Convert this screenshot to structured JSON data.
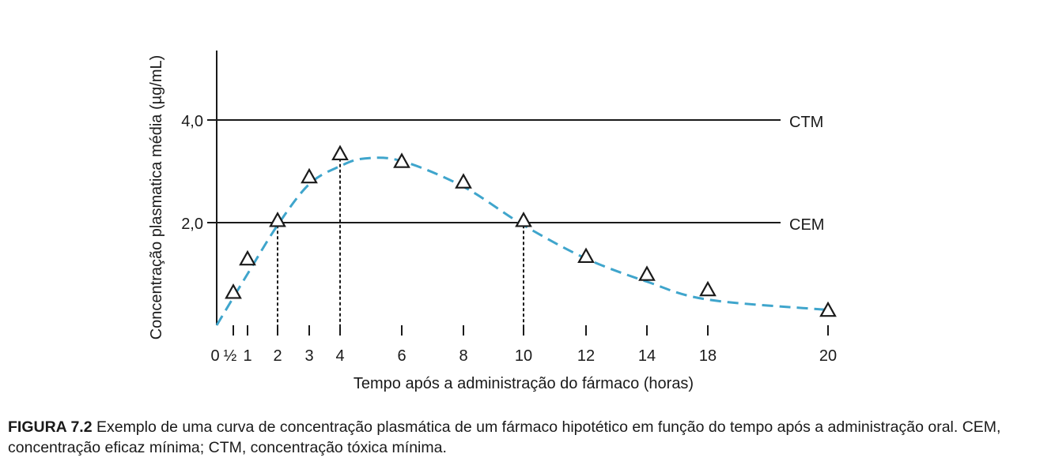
{
  "chart_data": {
    "type": "line",
    "ylabel": "Concentração plasmatica média (µg/mL)",
    "xlabel": "Tempo após a administração do fármaco (horas)",
    "y_ticks": [
      {
        "value": 2.0,
        "label": "2,0"
      },
      {
        "value": 4.0,
        "label": "4,0"
      }
    ],
    "ylim": [
      0,
      5.5
    ],
    "x_ticks": [
      {
        "value": 0,
        "label": "0"
      },
      {
        "value": 0.5,
        "label": "½"
      },
      {
        "value": 1,
        "label": "1"
      },
      {
        "value": 2,
        "label": "2"
      },
      {
        "value": 3,
        "label": "3"
      },
      {
        "value": 4,
        "label": "4"
      },
      {
        "value": 6,
        "label": "6"
      },
      {
        "value": 8,
        "label": "8"
      },
      {
        "value": 10,
        "label": "10"
      },
      {
        "value": 12,
        "label": "12"
      },
      {
        "value": 14,
        "label": "14"
      },
      {
        "value": 18,
        "label": "18"
      },
      {
        "value": 20,
        "label": "20"
      }
    ],
    "reference_lines": [
      {
        "name": "CTM",
        "value": 4.0
      },
      {
        "name": "CEM",
        "value": 2.0
      }
    ],
    "dropdown_lines_at_x": [
      2,
      4,
      10
    ],
    "series": [
      {
        "name": "Concentração plasmática",
        "marker": "triangle",
        "color": "#3fa5cc",
        "points": [
          {
            "x": 0.5,
            "y": 0.55
          },
          {
            "x": 1,
            "y": 1.2
          },
          {
            "x": 2,
            "y": 1.95
          },
          {
            "x": 3,
            "y": 2.8
          },
          {
            "x": 4,
            "y": 3.25
          },
          {
            "x": 6,
            "y": 3.1
          },
          {
            "x": 8,
            "y": 2.7
          },
          {
            "x": 10,
            "y": 1.95
          },
          {
            "x": 12,
            "y": 1.25
          },
          {
            "x": 14,
            "y": 0.9
          },
          {
            "x": 18,
            "y": 0.6
          },
          {
            "x": 20,
            "y": 0.2
          }
        ],
        "curve": [
          {
            "x": 0,
            "y": 0.0
          },
          {
            "x": 1,
            "y": 1.0
          },
          {
            "x": 2,
            "y": 1.95
          },
          {
            "x": 3,
            "y": 2.75
          },
          {
            "x": 4,
            "y": 3.1
          },
          {
            "x": 4.8,
            "y": 3.25
          },
          {
            "x": 6,
            "y": 3.2
          },
          {
            "x": 8,
            "y": 2.7
          },
          {
            "x": 10,
            "y": 1.95
          },
          {
            "x": 12,
            "y": 1.3
          },
          {
            "x": 14,
            "y": 0.85
          },
          {
            "x": 18,
            "y": 0.5
          },
          {
            "x": 20,
            "y": 0.3
          }
        ]
      }
    ]
  },
  "caption": {
    "label": "FIGURA 7.2",
    "text": " Exemplo de uma curva de concentração plasmática de um fármaco hipotético em função do tempo após a administração oral. CEM, concentração eficaz mínima; CTM, concentração tóxica mínima."
  }
}
